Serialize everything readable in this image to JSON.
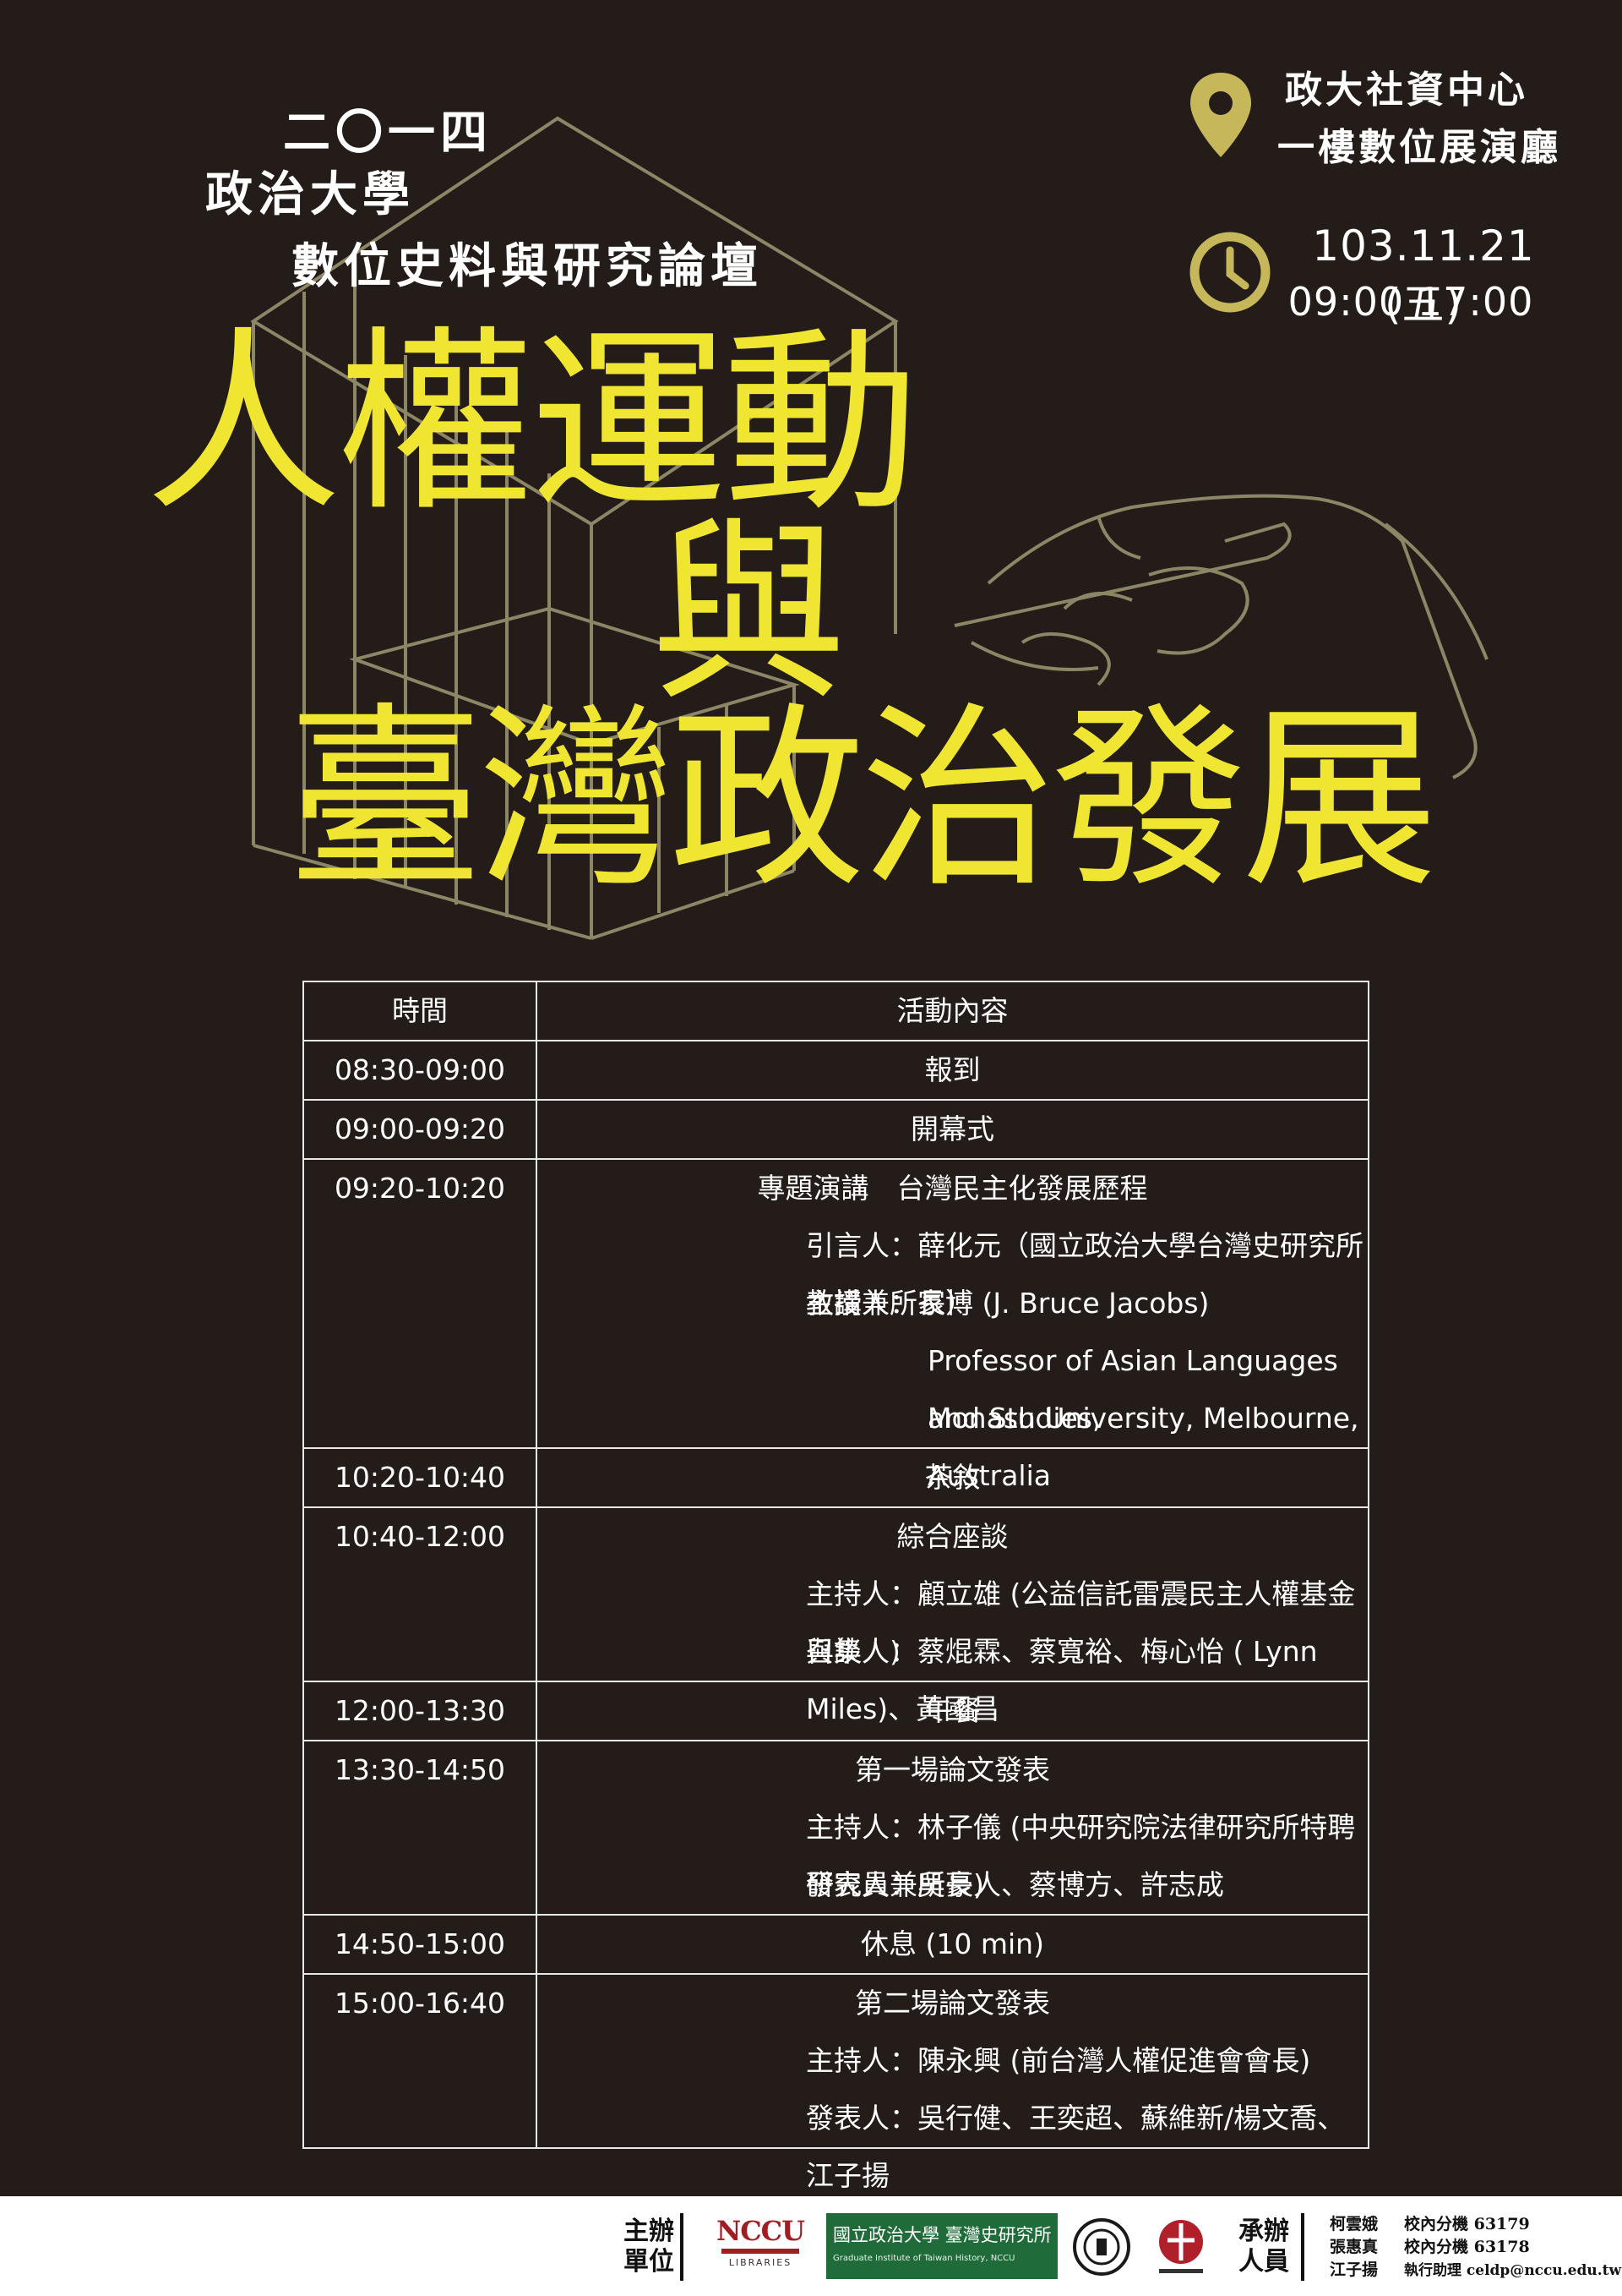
{
  "header": {
    "year": "二〇一四",
    "school": "政治大學",
    "forum": "數位史料與研究論壇"
  },
  "title": {
    "line1": "人權運動",
    "line2": "與",
    "line3": "臺灣政治發展"
  },
  "venue": {
    "line1": "政大社資中心",
    "line2": "一樓數位展演廳",
    "icon": "location-pin-icon"
  },
  "datetime": {
    "date": "103.11.21 (五)",
    "time": "09:00 17:00",
    "icon": "clock-icon"
  },
  "colors": {
    "background": "#241c19",
    "title": "#f0e632",
    "gold": "#c5b75a",
    "line_art": "#8c8666"
  },
  "schedule": {
    "head_time": "時間",
    "head_content": "活動內容",
    "rows": [
      {
        "time": "08:30-09:00",
        "lines": [
          "報到"
        ]
      },
      {
        "time": "09:00-09:20",
        "lines": [
          "開幕式"
        ]
      },
      {
        "time": "09:20-10:20",
        "title": "專題演講　台灣民主化發展歷程",
        "lines": [
          "引言人：薛化元（國立政治大學台灣史研究所教授兼所長）",
          "主講人：家博  (J. Bruce Jacobs)"
        ],
        "extra": [
          "Professor of Asian Languages and Studies,",
          "Monash University, Melbourne, Australia"
        ]
      },
      {
        "time": "10:20-10:40",
        "lines": [
          "茶敘"
        ]
      },
      {
        "time": "10:40-12:00",
        "title": "綜合座談",
        "lines": [
          "主持人：顧立雄 (公益信託雷震民主人權基金召集人)",
          "與談人：蔡焜霖、蔡寬裕、梅心怡 ( Lynn Miles)、黃國昌"
        ]
      },
      {
        "time": "12:00-13:30",
        "lines": [
          "午餐"
        ]
      },
      {
        "time": "13:30-14:50",
        "title": "第一場論文發表",
        "lines": [
          "主持人：林子儀 (中央研究院法律研究所特聘研究員兼所長)",
          "發表人：吳豪人、蔡博方、許志成"
        ]
      },
      {
        "time": "14:50-15:00",
        "lines": [
          "休息 (10 min)"
        ]
      },
      {
        "time": "15:00-16:40",
        "title": "第二場論文發表",
        "lines": [
          "主持人：陳永興 (前台灣人權促進會會長)",
          "發表人：吳行健、王奕超、蘇維新/楊文喬、江子揚"
        ]
      }
    ]
  },
  "footer": {
    "organizer_label_1": "主辦",
    "organizer_label_2": "單位",
    "nccu_logo": "NCCU",
    "nccu_libraries": "LIBRARIES",
    "institute_name": "國立政治大學 臺灣史研究所",
    "institute_en": "Graduate Institute of Taiwan History, NCCU",
    "staff_label_1": "承辦",
    "staff_label_2": "人員",
    "staff": [
      {
        "name": "柯雲娥",
        "role": "校內分機 63179"
      },
      {
        "name": "張惠真",
        "role": "校內分機 63178"
      },
      {
        "name": "江子揚",
        "role": "執行助理 celdp@nccu.edu.tw"
      }
    ]
  }
}
